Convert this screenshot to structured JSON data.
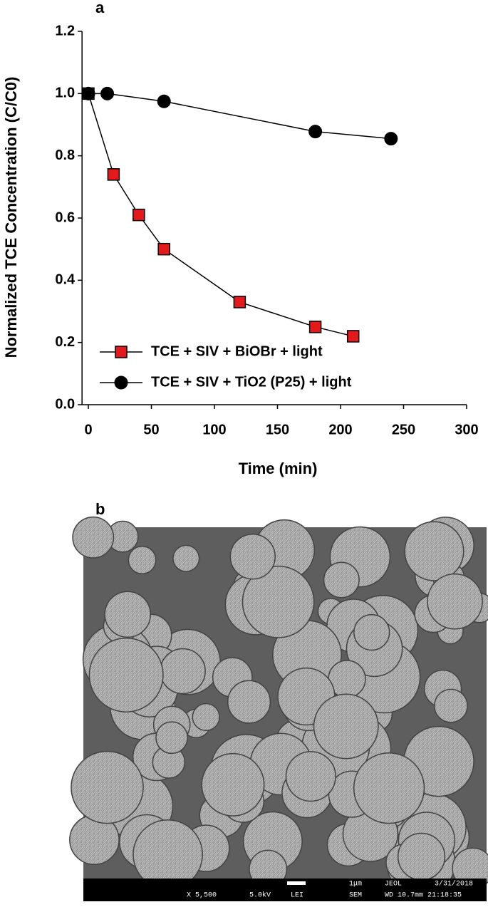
{
  "panel_labels": [
    "a",
    "b"
  ],
  "chart_data": {
    "type": "line",
    "xlabel": "Time (min)",
    "ylabel": "Normalized TCE Concentration (C/C0)",
    "xlim": [
      -5,
      300
    ],
    "xticks": [
      0,
      50,
      100,
      150,
      200,
      250,
      300
    ],
    "ylim": [
      0,
      1.2
    ],
    "yticks": [
      {
        "value": 0,
        "label": "0.0"
      },
      0.2,
      0.4,
      0.6,
      0.8,
      {
        "value": 1,
        "label": "1.0"
      },
      1.2
    ],
    "series": [
      {
        "name": "TCE + SIV + BiOBr + light",
        "color": "#e31a1c",
        "marker": "square",
        "x": [
          0,
          20,
          40,
          60,
          120,
          180,
          210
        ],
        "values": [
          1.0,
          0.74,
          0.61,
          0.5,
          0.33,
          0.25,
          0.22
        ]
      },
      {
        "name": "TCE + SIV + TiO2 (P25) + light",
        "color": "#000000",
        "marker": "circle",
        "x": [
          0,
          15,
          60,
          180,
          240
        ],
        "values": [
          1.0,
          1.0,
          0.975,
          0.878,
          0.855
        ]
      }
    ]
  },
  "image_info": {
    "scale": "1μm",
    "maker": "JEOL",
    "date": "3/31/2018",
    "magnification": "X 5,500",
    "voltage": "5.0kV",
    "detector": "LEI",
    "mode": "SEM",
    "wd_time": "WD 10.7mm 21:18:35"
  }
}
